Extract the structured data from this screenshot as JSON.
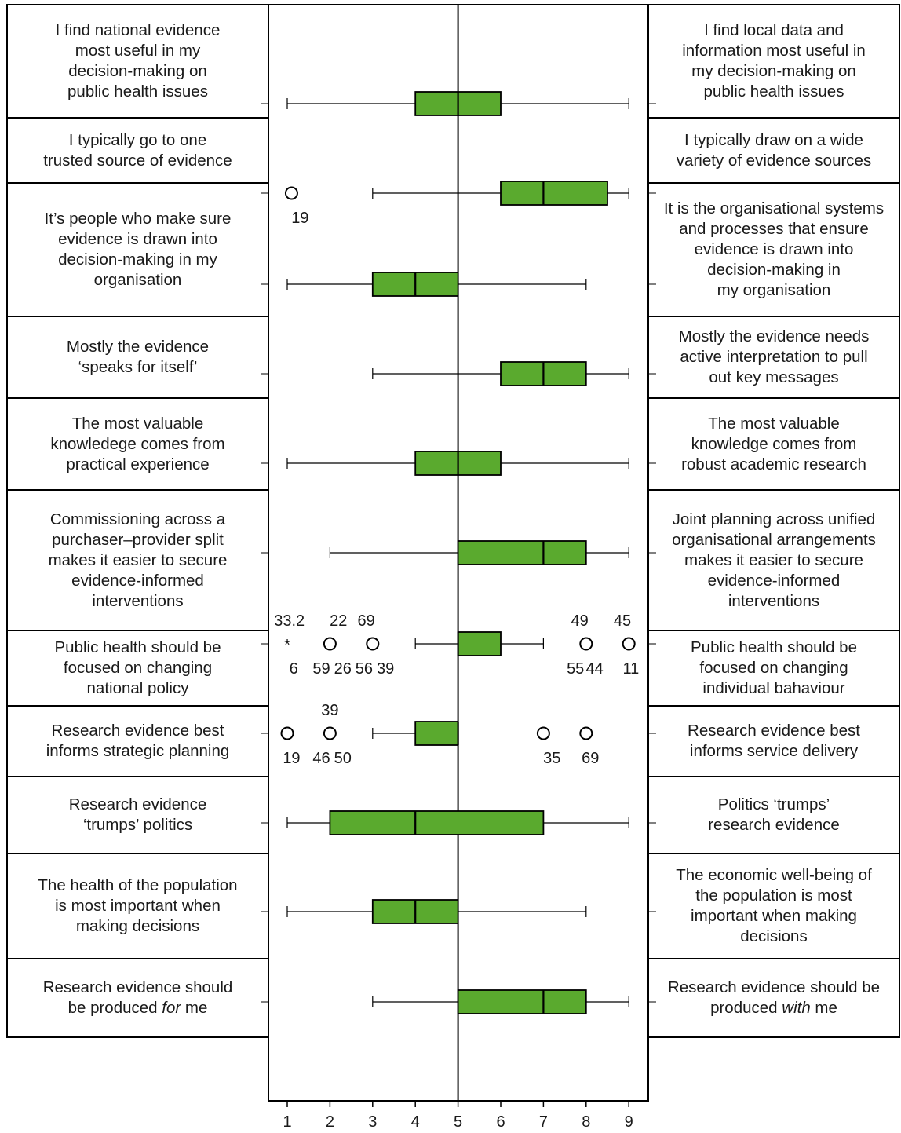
{
  "chart_data": {
    "type": "boxplot",
    "x_ticks": [
      1,
      2,
      3,
      4,
      5,
      6,
      7,
      8,
      9
    ],
    "xlim": [
      1,
      9
    ],
    "reference_line": 5,
    "colors": {
      "box_fill": "#5aaa2e",
      "line": "#000000",
      "outlier": "#000000"
    },
    "rows": [
      {
        "left": [
          "I find national evidence",
          "most useful in my",
          "decision-making on",
          "public health issues"
        ],
        "right": [
          "I find local data and",
          "information most useful in",
          "my decision-making on",
          "public health issues"
        ],
        "min": 1,
        "q1": 4,
        "median": 5,
        "q3": 6,
        "max": 9,
        "outliers": [],
        "labels": []
      },
      {
        "left": [
          "I typically go to one",
          "trusted source of evidence"
        ],
        "right": [
          "I typically draw on a wide",
          "variety of evidence sources"
        ],
        "min": 3,
        "q1": 6,
        "median": 7,
        "q3": 8.5,
        "max": 9,
        "outliers": [
          {
            "value": 1.1,
            "kind": "circle"
          }
        ],
        "labels": [
          {
            "text": "19",
            "x": 1.3,
            "pos": "below"
          }
        ]
      },
      {
        "left": [
          "It’s people who make sure",
          "evidence is drawn into",
          "decision-making in my",
          "organisation"
        ],
        "right": [
          "It is the organisational systems",
          "and processes that ensure",
          "evidence is drawn into",
          "decision-making in",
          "my organisation"
        ],
        "min": 1,
        "q1": 3,
        "median": 4,
        "q3": 5,
        "max": 8,
        "outliers": [],
        "labels": []
      },
      {
        "left": [
          "Mostly the evidence",
          "‘speaks for itself’"
        ],
        "right": [
          "Mostly the evidence needs",
          "active interpretation to pull",
          "out key messages"
        ],
        "min": 3,
        "q1": 6,
        "median": 7,
        "q3": 8,
        "max": 9,
        "outliers": [],
        "labels": []
      },
      {
        "left": [
          "The most valuable",
          "knowledege comes from",
          "practical experience"
        ],
        "right": [
          "The most valuable",
          "knowledge comes from",
          "robust academic research"
        ],
        "min": 1,
        "q1": 4,
        "median": 5,
        "q3": 6,
        "max": 9,
        "outliers": [],
        "labels": []
      },
      {
        "left": [
          "Commissioning across a",
          "purchaser–provider split",
          "makes it easier to secure",
          "evidence-informed",
          "interventions"
        ],
        "right": [
          "Joint planning across unified",
          "organisational arrangements",
          "makes it easier to secure",
          "evidence-informed",
          "interventions"
        ],
        "min": 2,
        "q1": 5,
        "median": 7,
        "q3": 8,
        "max": 9,
        "outliers": [],
        "labels": []
      },
      {
        "left": [
          "Public health should be",
          "focused on changing",
          "national policy"
        ],
        "right": [
          "Public health should be",
          "focused on changing",
          "individual bahaviour"
        ],
        "min": 4,
        "q1": 5,
        "median": 5,
        "q3": 6,
        "max": 7,
        "outliers": [
          {
            "value": 1,
            "kind": "star"
          },
          {
            "value": 2,
            "kind": "circle"
          },
          {
            "value": 3,
            "kind": "circle"
          },
          {
            "value": 8,
            "kind": "circle"
          },
          {
            "value": 9,
            "kind": "circle"
          }
        ],
        "labels": [
          {
            "text": "33.2",
            "x": 1.05,
            "pos": "above"
          },
          {
            "text": "22",
            "x": 2.2,
            "pos": "above"
          },
          {
            "text": "69",
            "x": 2.85,
            "pos": "above"
          },
          {
            "text": "49",
            "x": 7.85,
            "pos": "above"
          },
          {
            "text": "45",
            "x": 8.85,
            "pos": "above"
          },
          {
            "text": "6",
            "x": 1.15,
            "pos": "below"
          },
          {
            "text": "59",
            "x": 1.8,
            "pos": "below"
          },
          {
            "text": "26",
            "x": 2.3,
            "pos": "below"
          },
          {
            "text": "56",
            "x": 2.8,
            "pos": "below"
          },
          {
            "text": "39",
            "x": 3.3,
            "pos": "below"
          },
          {
            "text": "55",
            "x": 7.75,
            "pos": "below"
          },
          {
            "text": "44",
            "x": 8.2,
            "pos": "below"
          },
          {
            "text": "11",
            "x": 9.05,
            "pos": "below"
          }
        ]
      },
      {
        "left": [
          "Research evidence best",
          "informs strategic planning"
        ],
        "right": [
          "Research evidence best",
          "informs service delivery"
        ],
        "min": 3,
        "q1": 4,
        "median": 5,
        "q3": 5,
        "max": 5,
        "outliers": [
          {
            "value": 1,
            "kind": "circle"
          },
          {
            "value": 2,
            "kind": "circle"
          },
          {
            "value": 7,
            "kind": "circle"
          },
          {
            "value": 8,
            "kind": "circle"
          }
        ],
        "labels": [
          {
            "text": "39",
            "x": 2,
            "pos": "above"
          },
          {
            "text": "19",
            "x": 1.1,
            "pos": "below"
          },
          {
            "text": "46",
            "x": 1.8,
            "pos": "below"
          },
          {
            "text": "50",
            "x": 2.3,
            "pos": "below"
          },
          {
            "text": "35",
            "x": 7.2,
            "pos": "below"
          },
          {
            "text": "69",
            "x": 8.1,
            "pos": "below"
          }
        ]
      },
      {
        "left": [
          "Research evidence",
          "‘trumps’ politics"
        ],
        "right": [
          "Politics ‘trumps’",
          "research evidence"
        ],
        "min": 1,
        "q1": 2,
        "median": 4,
        "q3": 7,
        "max": 9,
        "outliers": [],
        "labels": []
      },
      {
        "left": [
          "The health of the population",
          "is most important when",
          "making decisions"
        ],
        "right": [
          "The economic well-being of",
          "the population is most",
          "important when making",
          "decisions"
        ],
        "min": 1,
        "q1": 3,
        "median": 4,
        "q3": 5,
        "max": 8,
        "outliers": [],
        "labels": []
      },
      {
        "left": [
          "Research evidence should",
          "be produced <em>for</em> me"
        ],
        "right": [
          "Research evidence should be",
          "produced <em>with</em> me"
        ],
        "min": 3,
        "q1": 5,
        "median": 7,
        "q3": 8,
        "max": 9,
        "outliers": [],
        "labels": []
      }
    ]
  }
}
